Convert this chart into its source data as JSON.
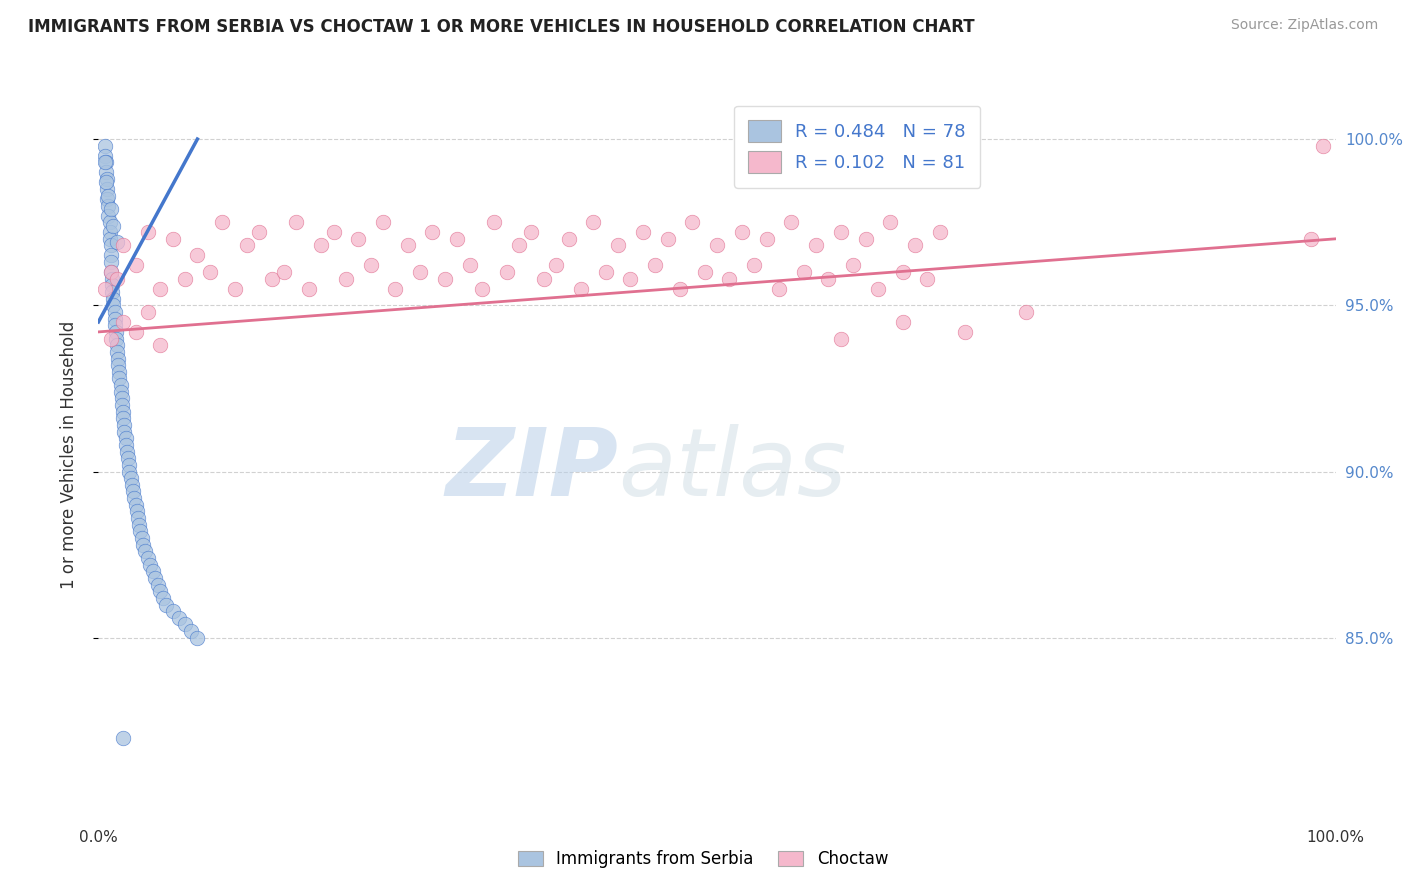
{
  "title": "IMMIGRANTS FROM SERBIA VS CHOCTAW 1 OR MORE VEHICLES IN HOUSEHOLD CORRELATION CHART",
  "source": "Source: ZipAtlas.com",
  "ylabel": "1 or more Vehicles in Household",
  "legend_serbia": "Immigrants from Serbia",
  "legend_choctaw": "Choctaw",
  "r_serbia": 0.484,
  "n_serbia": 78,
  "r_choctaw": 0.102,
  "n_choctaw": 81,
  "serbia_color": "#aac4e0",
  "serbia_line_color": "#4477cc",
  "choctaw_color": "#f5b8cc",
  "choctaw_line_color": "#e07090",
  "background_color": "#ffffff",
  "grid_color": "#cccccc",
  "watermark_zip": "ZIP",
  "watermark_atlas": "atlas",
  "xmin": 0.0,
  "xmax": 1.0,
  "ymin": 0.795,
  "ymax": 1.015,
  "ytick_values": [
    0.85,
    0.9,
    0.95,
    1.0
  ],
  "ytick_labels": [
    "85.0%",
    "90.0%",
    "95.0%",
    "100.0%"
  ],
  "serbia_x": [
    0.005,
    0.005,
    0.006,
    0.006,
    0.007,
    0.007,
    0.007,
    0.008,
    0.008,
    0.009,
    0.009,
    0.009,
    0.01,
    0.01,
    0.01,
    0.01,
    0.011,
    0.011,
    0.011,
    0.012,
    0.012,
    0.013,
    0.013,
    0.013,
    0.014,
    0.014,
    0.015,
    0.015,
    0.016,
    0.016,
    0.017,
    0.017,
    0.018,
    0.018,
    0.019,
    0.019,
    0.02,
    0.02,
    0.021,
    0.021,
    0.022,
    0.022,
    0.023,
    0.024,
    0.025,
    0.025,
    0.026,
    0.027,
    0.028,
    0.029,
    0.03,
    0.031,
    0.032,
    0.033,
    0.034,
    0.035,
    0.036,
    0.038,
    0.04,
    0.042,
    0.044,
    0.046,
    0.048,
    0.05,
    0.052,
    0.055,
    0.06,
    0.065,
    0.07,
    0.075,
    0.08,
    0.005,
    0.006,
    0.008,
    0.01,
    0.012,
    0.015,
    0.02
  ],
  "serbia_y": [
    0.998,
    0.995,
    0.993,
    0.99,
    0.988,
    0.985,
    0.982,
    0.98,
    0.977,
    0.975,
    0.972,
    0.97,
    0.968,
    0.965,
    0.963,
    0.96,
    0.958,
    0.956,
    0.954,
    0.952,
    0.95,
    0.948,
    0.946,
    0.944,
    0.942,
    0.94,
    0.938,
    0.936,
    0.934,
    0.932,
    0.93,
    0.928,
    0.926,
    0.924,
    0.922,
    0.92,
    0.918,
    0.916,
    0.914,
    0.912,
    0.91,
    0.908,
    0.906,
    0.904,
    0.902,
    0.9,
    0.898,
    0.896,
    0.894,
    0.892,
    0.89,
    0.888,
    0.886,
    0.884,
    0.882,
    0.88,
    0.878,
    0.876,
    0.874,
    0.872,
    0.87,
    0.868,
    0.866,
    0.864,
    0.862,
    0.86,
    0.858,
    0.856,
    0.854,
    0.852,
    0.85,
    0.993,
    0.987,
    0.983,
    0.979,
    0.974,
    0.969,
    0.82
  ],
  "choctaw_x": [
    0.005,
    0.01,
    0.015,
    0.02,
    0.03,
    0.04,
    0.05,
    0.06,
    0.07,
    0.08,
    0.09,
    0.1,
    0.11,
    0.12,
    0.13,
    0.14,
    0.15,
    0.16,
    0.17,
    0.18,
    0.19,
    0.2,
    0.21,
    0.22,
    0.23,
    0.24,
    0.25,
    0.26,
    0.27,
    0.28,
    0.29,
    0.3,
    0.31,
    0.32,
    0.33,
    0.34,
    0.35,
    0.36,
    0.37,
    0.38,
    0.39,
    0.4,
    0.41,
    0.42,
    0.43,
    0.44,
    0.45,
    0.46,
    0.47,
    0.48,
    0.49,
    0.5,
    0.51,
    0.52,
    0.53,
    0.54,
    0.55,
    0.56,
    0.57,
    0.58,
    0.59,
    0.6,
    0.61,
    0.62,
    0.63,
    0.64,
    0.65,
    0.66,
    0.67,
    0.68,
    0.01,
    0.02,
    0.03,
    0.04,
    0.05,
    0.6,
    0.65,
    0.7,
    0.75,
    0.98,
    0.99
  ],
  "choctaw_y": [
    0.955,
    0.96,
    0.958,
    0.968,
    0.962,
    0.972,
    0.955,
    0.97,
    0.958,
    0.965,
    0.96,
    0.975,
    0.955,
    0.968,
    0.972,
    0.958,
    0.96,
    0.975,
    0.955,
    0.968,
    0.972,
    0.958,
    0.97,
    0.962,
    0.975,
    0.955,
    0.968,
    0.96,
    0.972,
    0.958,
    0.97,
    0.962,
    0.955,
    0.975,
    0.96,
    0.968,
    0.972,
    0.958,
    0.962,
    0.97,
    0.955,
    0.975,
    0.96,
    0.968,
    0.958,
    0.972,
    0.962,
    0.97,
    0.955,
    0.975,
    0.96,
    0.968,
    0.958,
    0.972,
    0.962,
    0.97,
    0.955,
    0.975,
    0.96,
    0.968,
    0.958,
    0.972,
    0.962,
    0.97,
    0.955,
    0.975,
    0.96,
    0.968,
    0.958,
    0.972,
    0.94,
    0.945,
    0.942,
    0.948,
    0.938,
    0.94,
    0.945,
    0.942,
    0.948,
    0.97,
    0.998
  ],
  "serbia_line_x": [
    0.0,
    0.08
  ],
  "serbia_line_y": [
    0.945,
    1.0
  ],
  "choctaw_line_x": [
    0.0,
    1.0
  ],
  "choctaw_line_y": [
    0.942,
    0.97
  ]
}
